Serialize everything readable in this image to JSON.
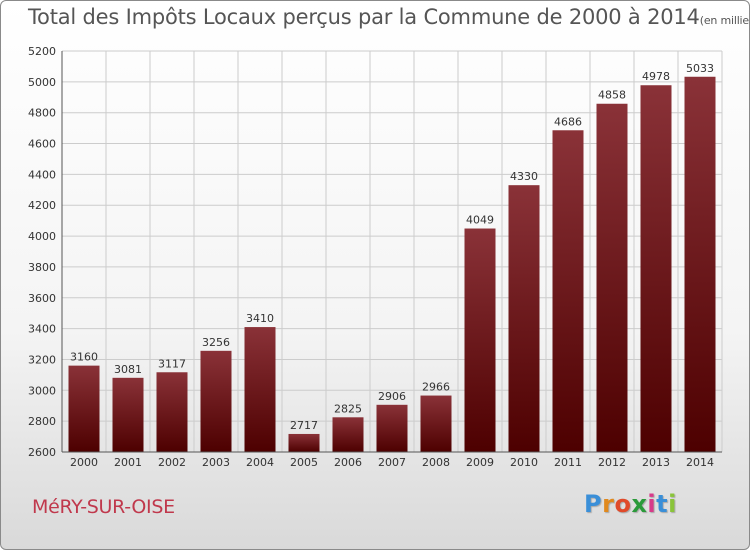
{
  "title": "Total des Impôts Locaux perçus par la Commune de 2000 à 2014",
  "title_unit": "(en milliers d'€)",
  "commune": "MéRY-SUR-OISE",
  "logo": {
    "letters": [
      "P",
      "r",
      "o",
      "x",
      "i",
      "t",
      "i"
    ],
    "colors": [
      "#3a8fd8",
      "#e0891e",
      "#e04a2a",
      "#2a9a3a",
      "#d83a8a",
      "#3a8fd8",
      "#8ac43a"
    ]
  },
  "colors": {
    "bar_top": "#8a3238",
    "bar_bottom": "#4d0000",
    "grid": "#cccccc",
    "axis_text": "#333333",
    "commune": "#c0384c"
  },
  "chart_data": {
    "type": "bar",
    "categories": [
      "2000",
      "2001",
      "2002",
      "2003",
      "2004",
      "2005",
      "2006",
      "2007",
      "2008",
      "2009",
      "2010",
      "2011",
      "2012",
      "2013",
      "2014"
    ],
    "values": [
      3160,
      3081,
      3117,
      3256,
      3410,
      2717,
      2825,
      2906,
      2966,
      4049,
      4330,
      4686,
      4858,
      4978,
      5033
    ],
    "ylim": [
      2600,
      5200
    ],
    "yticks": [
      2600,
      2800,
      3000,
      3200,
      3400,
      3600,
      3800,
      4000,
      4200,
      4400,
      4600,
      4800,
      5000,
      5200
    ],
    "grid": true,
    "data_labels": true
  }
}
